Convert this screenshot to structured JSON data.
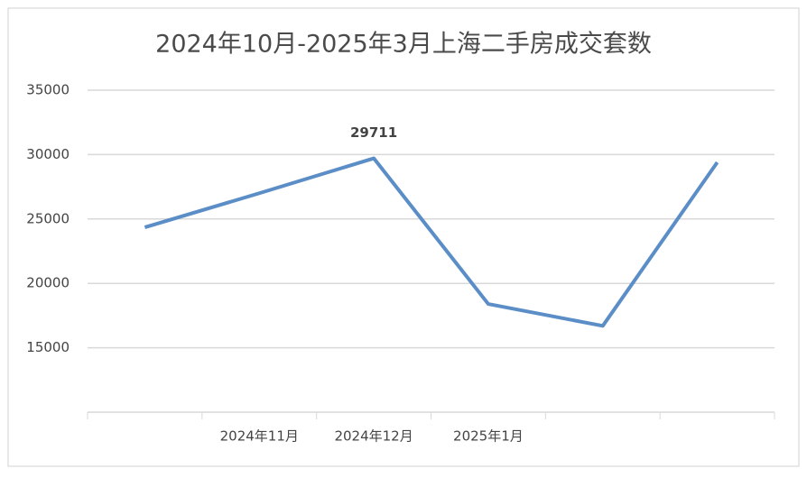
{
  "chart_data": {
    "type": "line",
    "title": "2024年10月-2025年3月上海二手房成交套数",
    "categories": [
      null,
      "2024年11月",
      "2024年12月",
      "2025年1月",
      null,
      null
    ],
    "series": [
      {
        "name": "成交套数",
        "color": "#5b8ec7",
        "values": [
          24350,
          27000,
          29711,
          18400,
          16700,
          29400
        ],
        "value_labels": [
          null,
          null,
          "29711",
          null,
          null,
          null
        ]
      }
    ],
    "ylim": [
      10000,
      35000
    ],
    "yticks": [
      15000,
      20000,
      25000,
      30000,
      35000
    ],
    "grid": true
  }
}
